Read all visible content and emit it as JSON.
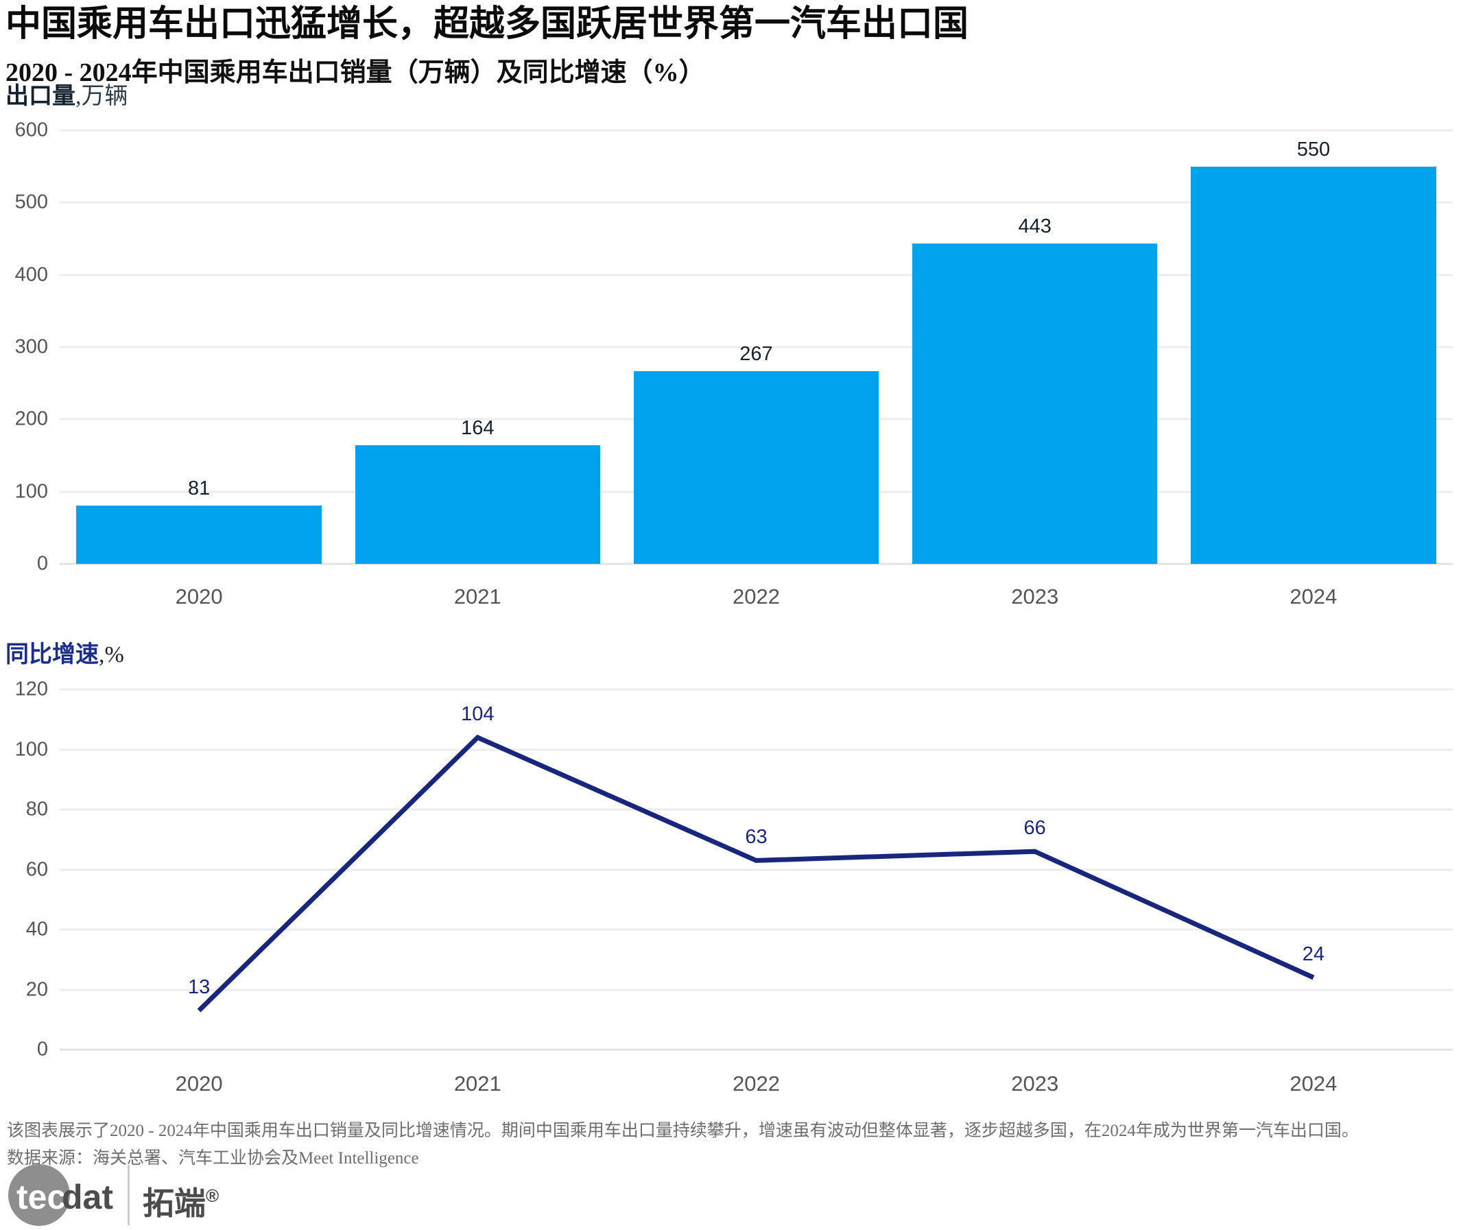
{
  "header": {
    "title": "中国乘用车出口迅猛增长，超越多国跃居世界第一汽车出口国",
    "subtitle": "2020 - 2024年中国乘用车出口销量（万辆）及同比增速（%）"
  },
  "chart_data": [
    {
      "type": "bar",
      "name": "出口量",
      "axis_title": "出口量",
      "axis_unit": ",万辆",
      "categories": [
        "2020",
        "2021",
        "2022",
        "2023",
        "2024"
      ],
      "values": [
        81,
        164,
        267,
        443,
        550
      ],
      "ylim": [
        0,
        600
      ],
      "ytick_step": 100,
      "grid": true,
      "legend_position": "none",
      "bar_color": "#00a2ee",
      "value_label_color": "#14222e"
    },
    {
      "type": "line",
      "name": "同比增速",
      "axis_title": "同比增速",
      "axis_unit": ",%",
      "categories": [
        "2020",
        "2021",
        "2022",
        "2023",
        "2024"
      ],
      "values": [
        13,
        104,
        63,
        66,
        24
      ],
      "ylim": [
        0,
        120
      ],
      "ytick_step": 20,
      "grid": true,
      "legend_position": "none",
      "line_color": "#18267c",
      "value_label_color": "#18267c"
    }
  ],
  "caption": {
    "description": "该图表展示了2020 - 2024年中国乘用车出口销量及同比增速情况。期间中国乘用车出口量持续攀升，增速虽有波动但整体显著，逐步超越多国，在2024年成为世界第一汽车出口国。",
    "source": "数据来源：海关总署、汽车工业协会及Meet Intelligence"
  },
  "logo": {
    "brand_prefix": "tec",
    "brand_suffix": "dat",
    "brand_cjk": "拓端",
    "registered": "®"
  },
  "colors": {
    "bar": "#00a2ee",
    "line": "#18267c",
    "gridline": "#ececec",
    "tick_text": "#555555",
    "caption_text": "#6e6e6e"
  }
}
